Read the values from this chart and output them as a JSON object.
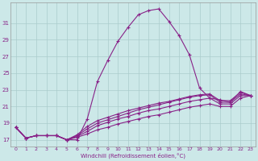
{
  "xlabel": "Windchill (Refroidissement éolien,°C)",
  "background_color": "#cce8e8",
  "grid_color": "#aacccc",
  "line_color": "#882288",
  "x_ticks": [
    0,
    1,
    2,
    3,
    4,
    5,
    6,
    7,
    8,
    9,
    10,
    11,
    12,
    13,
    14,
    15,
    16,
    17,
    18,
    19,
    20,
    21,
    22,
    23
  ],
  "y_ticks": [
    17,
    19,
    21,
    23,
    25,
    27,
    29,
    31
  ],
  "ylim": [
    16.2,
    33.5
  ],
  "xlim": [
    -0.5,
    23.5
  ],
  "lines": [
    [
      18.5,
      17.2,
      17.5,
      17.5,
      17.5,
      17.0,
      17.0,
      19.5,
      24.0,
      26.5,
      28.8,
      30.5,
      32.0,
      32.5,
      32.7,
      31.2,
      29.5,
      27.2,
      23.2,
      22.0,
      21.8,
      21.5,
      22.8,
      22.3
    ],
    [
      18.5,
      17.2,
      17.5,
      17.5,
      17.5,
      17.0,
      17.5,
      18.3,
      19.0,
      19.4,
      19.8,
      20.2,
      20.6,
      20.9,
      21.2,
      21.5,
      21.8,
      22.1,
      22.3,
      22.4,
      21.5,
      21.5,
      22.5,
      22.3
    ],
    [
      18.5,
      17.2,
      17.5,
      17.5,
      17.5,
      17.0,
      17.6,
      18.6,
      19.3,
      19.7,
      20.1,
      20.5,
      20.8,
      21.1,
      21.4,
      21.6,
      21.9,
      22.2,
      22.4,
      22.5,
      21.7,
      21.7,
      22.7,
      22.3
    ],
    [
      18.5,
      17.2,
      17.5,
      17.5,
      17.5,
      17.0,
      17.4,
      18.0,
      18.7,
      19.1,
      19.5,
      19.8,
      20.2,
      20.5,
      20.7,
      21.0,
      21.3,
      21.6,
      21.8,
      22.0,
      21.3,
      21.3,
      22.3,
      22.3
    ],
    [
      18.5,
      17.2,
      17.5,
      17.5,
      17.5,
      17.0,
      17.3,
      17.7,
      18.2,
      18.5,
      18.9,
      19.2,
      19.5,
      19.8,
      20.0,
      20.3,
      20.6,
      20.9,
      21.1,
      21.3,
      21.0,
      21.0,
      22.0,
      22.3
    ]
  ]
}
